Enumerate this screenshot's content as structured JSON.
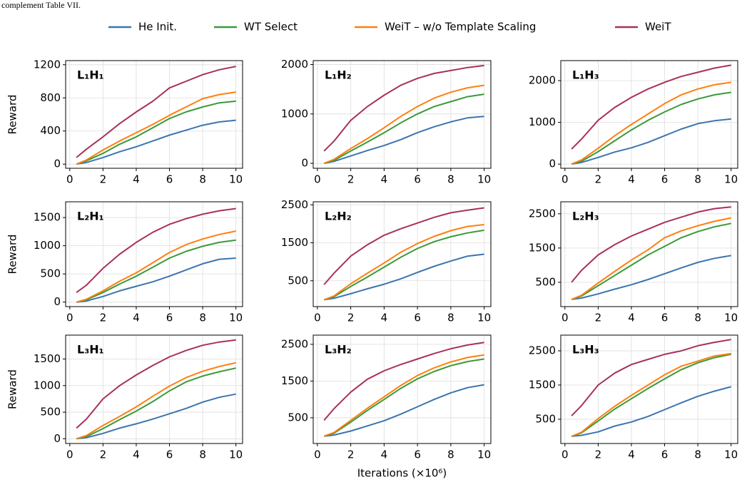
{
  "caption": "complement Table VII.",
  "chart_data": [
    {
      "type": "line",
      "title": "L₁H₁",
      "ylabel": "Reward",
      "grid": true,
      "x": [
        0.4,
        1,
        2,
        3,
        4,
        5,
        6,
        7,
        8,
        9,
        10
      ],
      "xlim": [
        -0.25,
        10.4
      ],
      "xticks": [
        0,
        2,
        4,
        6,
        8,
        10
      ],
      "ylim": [
        -50,
        1250
      ],
      "yticks": [
        0,
        400,
        800,
        1200
      ],
      "series": [
        {
          "name": "He Init.",
          "color": "#3b75af",
          "values": [
            0,
            20,
            80,
            150,
            210,
            280,
            350,
            410,
            470,
            510,
            530
          ]
        },
        {
          "name": "WT Select",
          "color": "#3a9a3a",
          "values": [
            0,
            40,
            130,
            240,
            330,
            440,
            550,
            630,
            690,
            740,
            760
          ]
        },
        {
          "name": "WeiT – w/o Template Scaling",
          "color": "#ff7f0e",
          "values": [
            0,
            50,
            170,
            280,
            380,
            480,
            590,
            690,
            790,
            840,
            870
          ]
        },
        {
          "name": "WeiT",
          "color": "#a8305e",
          "values": [
            80,
            180,
            330,
            490,
            630,
            760,
            920,
            1000,
            1080,
            1140,
            1180
          ]
        }
      ]
    },
    {
      "type": "line",
      "title": "L₁H₂",
      "grid": true,
      "x": [
        0.4,
        1,
        2,
        3,
        4,
        5,
        6,
        7,
        8,
        9,
        10
      ],
      "xlim": [
        -0.25,
        10.4
      ],
      "xticks": [
        0,
        2,
        4,
        6,
        8,
        10
      ],
      "ylim": [
        -100,
        2080
      ],
      "yticks": [
        0,
        1000,
        2000
      ],
      "series": [
        {
          "name": "He Init.",
          "color": "#3b75af",
          "values": [
            0,
            40,
            150,
            260,
            360,
            480,
            620,
            740,
            840,
            920,
            950
          ]
        },
        {
          "name": "WT Select",
          "color": "#3a9a3a",
          "values": [
            0,
            60,
            250,
            430,
            620,
            820,
            1000,
            1150,
            1250,
            1350,
            1400
          ]
        },
        {
          "name": "WeiT – w/o Template Scaling",
          "color": "#ff7f0e",
          "values": [
            0,
            80,
            300,
            500,
            720,
            950,
            1150,
            1320,
            1440,
            1530,
            1580
          ]
        },
        {
          "name": "WeiT",
          "color": "#a8305e",
          "values": [
            250,
            450,
            870,
            1150,
            1380,
            1580,
            1720,
            1820,
            1880,
            1940,
            1980
          ]
        }
      ]
    },
    {
      "type": "line",
      "title": "L₁H₃",
      "grid": true,
      "x": [
        0.4,
        1,
        2,
        3,
        4,
        5,
        6,
        7,
        8,
        9,
        10
      ],
      "xlim": [
        -0.25,
        10.4
      ],
      "xticks": [
        0,
        2,
        4,
        6,
        8,
        10
      ],
      "ylim": [
        -100,
        2480
      ],
      "yticks": [
        0,
        1000,
        2000
      ],
      "series": [
        {
          "name": "He Init.",
          "color": "#3b75af",
          "values": [
            0,
            40,
            160,
            290,
            390,
            520,
            680,
            840,
            970,
            1040,
            1080
          ]
        },
        {
          "name": "WT Select",
          "color": "#3a9a3a",
          "values": [
            0,
            70,
            300,
            560,
            820,
            1050,
            1250,
            1430,
            1560,
            1660,
            1720
          ]
        },
        {
          "name": "WeiT – w/o Template Scaling",
          "color": "#ff7f0e",
          "values": [
            0,
            100,
            380,
            680,
            950,
            1200,
            1450,
            1660,
            1800,
            1900,
            1960
          ]
        },
        {
          "name": "WeiT",
          "color": "#a8305e",
          "values": [
            360,
            600,
            1050,
            1360,
            1600,
            1800,
            1960,
            2100,
            2200,
            2300,
            2370
          ]
        }
      ]
    },
    {
      "type": "line",
      "title": "L₂H₁",
      "ylabel": "Reward",
      "grid": true,
      "x": [
        0.4,
        1,
        2,
        3,
        4,
        5,
        6,
        7,
        8,
        9,
        10
      ],
      "xlim": [
        -0.25,
        10.4
      ],
      "xticks": [
        0,
        2,
        4,
        6,
        8,
        10
      ],
      "ylim": [
        -80,
        1780
      ],
      "yticks": [
        0,
        500,
        1000,
        1500
      ],
      "series": [
        {
          "name": "He Init.",
          "color": "#3b75af",
          "values": [
            0,
            20,
            100,
            200,
            280,
            360,
            460,
            570,
            680,
            760,
            780
          ]
        },
        {
          "name": "WT Select",
          "color": "#3a9a3a",
          "values": [
            0,
            40,
            170,
            320,
            460,
            620,
            780,
            900,
            990,
            1060,
            1100
          ]
        },
        {
          "name": "WeiT – w/o Template Scaling",
          "color": "#ff7f0e",
          "values": [
            0,
            50,
            200,
            370,
            520,
            700,
            880,
            1020,
            1120,
            1200,
            1260
          ]
        },
        {
          "name": "WeiT",
          "color": "#a8305e",
          "values": [
            170,
            300,
            600,
            850,
            1060,
            1240,
            1380,
            1480,
            1560,
            1620,
            1660
          ]
        }
      ]
    },
    {
      "type": "line",
      "title": "L₂H₂",
      "grid": true,
      "x": [
        0.4,
        1,
        2,
        3,
        4,
        5,
        6,
        7,
        8,
        9,
        10
      ],
      "xlim": [
        -0.25,
        10.4
      ],
      "xticks": [
        0,
        2,
        4,
        6,
        8,
        10
      ],
      "ylim": [
        -180,
        2580
      ],
      "yticks": [
        500,
        1500,
        2500
      ],
      "series": [
        {
          "name": "He Init.",
          "color": "#3b75af",
          "values": [
            0,
            40,
            160,
            290,
            410,
            550,
            720,
            880,
            1020,
            1150,
            1200
          ]
        },
        {
          "name": "WT Select",
          "color": "#3a9a3a",
          "values": [
            0,
            80,
            350,
            600,
            860,
            1120,
            1350,
            1530,
            1660,
            1760,
            1830
          ]
        },
        {
          "name": "WeiT – w/o Template Scaling",
          "color": "#ff7f0e",
          "values": [
            0,
            100,
            420,
            700,
            970,
            1250,
            1480,
            1670,
            1820,
            1930,
            1980
          ]
        },
        {
          "name": "WeiT",
          "color": "#a8305e",
          "values": [
            400,
            700,
            1150,
            1450,
            1700,
            1870,
            2020,
            2170,
            2290,
            2360,
            2420
          ]
        }
      ]
    },
    {
      "type": "line",
      "title": "L₂H₃",
      "grid": true,
      "x": [
        0.4,
        1,
        2,
        3,
        4,
        5,
        6,
        7,
        8,
        9,
        10
      ],
      "xlim": [
        -0.25,
        10.4
      ],
      "xticks": [
        0,
        2,
        4,
        6,
        8,
        10
      ],
      "ylim": [
        -210,
        2850
      ],
      "yticks": [
        500,
        1500,
        2500
      ],
      "series": [
        {
          "name": "He Init.",
          "color": "#3b75af",
          "values": [
            0,
            40,
            160,
            300,
            430,
            580,
            750,
            920,
            1080,
            1200,
            1280
          ]
        },
        {
          "name": "WT Select",
          "color": "#3a9a3a",
          "values": [
            0,
            100,
            400,
            700,
            1000,
            1300,
            1550,
            1800,
            1980,
            2120,
            2220
          ]
        },
        {
          "name": "WeiT – w/o Template Scaling",
          "color": "#ff7f0e",
          "values": [
            0,
            120,
            480,
            820,
            1150,
            1450,
            1800,
            2000,
            2150,
            2280,
            2380
          ]
        },
        {
          "name": "WeiT",
          "color": "#a8305e",
          "values": [
            500,
            850,
            1300,
            1600,
            1850,
            2050,
            2250,
            2400,
            2550,
            2650,
            2700
          ]
        }
      ]
    },
    {
      "type": "line",
      "title": "L₃H₁",
      "ylabel": "Reward",
      "grid": true,
      "x": [
        0.4,
        1,
        2,
        3,
        4,
        5,
        6,
        7,
        8,
        9,
        10
      ],
      "xlim": [
        -0.25,
        10.4
      ],
      "xticks": [
        0,
        2,
        4,
        6,
        8,
        10
      ],
      "ylim": [
        -90,
        1950
      ],
      "yticks": [
        0,
        500,
        1000,
        1500
      ],
      "series": [
        {
          "name": "He Init.",
          "color": "#3b75af",
          "values": [
            0,
            20,
            100,
            200,
            280,
            370,
            470,
            570,
            690,
            780,
            840
          ]
        },
        {
          "name": "WT Select",
          "color": "#3a9a3a",
          "values": [
            0,
            40,
            190,
            360,
            520,
            700,
            900,
            1070,
            1180,
            1260,
            1330
          ]
        },
        {
          "name": "WeiT – w/o Template Scaling",
          "color": "#ff7f0e",
          "values": [
            0,
            60,
            250,
            420,
            600,
            800,
            990,
            1150,
            1270,
            1360,
            1430
          ]
        },
        {
          "name": "WeiT",
          "color": "#a8305e",
          "values": [
            200,
            370,
            750,
            1000,
            1200,
            1380,
            1540,
            1660,
            1760,
            1820,
            1860
          ]
        }
      ]
    },
    {
      "type": "line",
      "title": "L₃H₂",
      "xlabel": "Iterations (×10⁶)",
      "grid": true,
      "x": [
        0.4,
        1,
        2,
        3,
        4,
        5,
        6,
        7,
        8,
        9,
        10
      ],
      "xlim": [
        -0.25,
        10.4
      ],
      "xticks": [
        0,
        2,
        4,
        6,
        8,
        10
      ],
      "ylim": [
        -200,
        2750
      ],
      "yticks": [
        500,
        1500,
        2500
      ],
      "series": [
        {
          "name": "He Init.",
          "color": "#3b75af",
          "values": [
            0,
            30,
            140,
            280,
            420,
            600,
            800,
            1000,
            1180,
            1320,
            1400
          ]
        },
        {
          "name": "WT Select",
          "color": "#3a9a3a",
          "values": [
            0,
            80,
            380,
            700,
            1000,
            1300,
            1560,
            1760,
            1920,
            2030,
            2100
          ]
        },
        {
          "name": "WeiT – w/o Template Scaling",
          "color": "#ff7f0e",
          "values": [
            0,
            100,
            430,
            760,
            1070,
            1380,
            1650,
            1860,
            2020,
            2140,
            2210
          ]
        },
        {
          "name": "WeiT",
          "color": "#a8305e",
          "values": [
            430,
            750,
            1200,
            1550,
            1780,
            1950,
            2100,
            2250,
            2380,
            2480,
            2550
          ]
        }
      ]
    },
    {
      "type": "line",
      "title": "L₃H₃",
      "grid": true,
      "x": [
        0.4,
        1,
        2,
        3,
        4,
        5,
        6,
        7,
        8,
        9,
        10
      ],
      "xlim": [
        -0.25,
        10.4
      ],
      "xticks": [
        0,
        2,
        4,
        6,
        8,
        10
      ],
      "ylim": [
        -210,
        2960
      ],
      "yticks": [
        500,
        1500,
        2500
      ],
      "series": [
        {
          "name": "He Init.",
          "color": "#3b75af",
          "values": [
            0,
            30,
            130,
            300,
            420,
            580,
            780,
            980,
            1170,
            1320,
            1450
          ]
        },
        {
          "name": "WT Select",
          "color": "#3a9a3a",
          "values": [
            0,
            100,
            450,
            800,
            1100,
            1400,
            1680,
            1950,
            2150,
            2300,
            2400
          ]
        },
        {
          "name": "WeiT – w/o Template Scaling",
          "color": "#ff7f0e",
          "values": [
            0,
            120,
            520,
            880,
            1200,
            1500,
            1800,
            2050,
            2200,
            2350,
            2420
          ]
        },
        {
          "name": "WeiT",
          "color": "#a8305e",
          "values": [
            600,
            900,
            1500,
            1850,
            2100,
            2250,
            2400,
            2500,
            2650,
            2750,
            2830
          ]
        }
      ]
    }
  ]
}
